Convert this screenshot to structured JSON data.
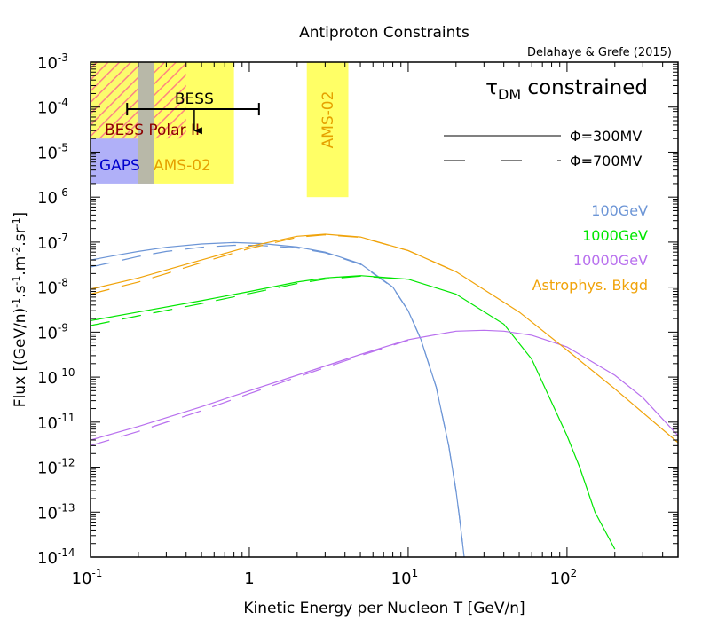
{
  "chart_data": {
    "type": "line",
    "title": "Antiproton Constraints",
    "subtitle": "Delahaye & Grefe (2015)",
    "xlabel": "Kinetic Energy per Nucleon T [GeV/n]",
    "ylabel": "Flux [(GeV/n)^-1.s^-1.m^-2.sr^-1]",
    "xscale": "log",
    "yscale": "log",
    "xlim": [
      0.1,
      500
    ],
    "ylim": [
      1e-14,
      0.001
    ],
    "grid": false,
    "x_ticks": [
      {
        "value": 0.1,
        "base": "10",
        "exp": "-1"
      },
      {
        "value": 1,
        "base": "1",
        "exp": ""
      },
      {
        "value": 10,
        "base": "10",
        "exp": "1"
      },
      {
        "value": 100,
        "base": "10",
        "exp": "2"
      }
    ],
    "y_ticks": [
      {
        "value": 0.001,
        "base": "10",
        "exp": "-3"
      },
      {
        "value": 0.0001,
        "base": "10",
        "exp": "-4"
      },
      {
        "value": 1e-05,
        "base": "10",
        "exp": "-5"
      },
      {
        "value": 1e-06,
        "base": "10",
        "exp": "-6"
      },
      {
        "value": 1e-07,
        "base": "10",
        "exp": "-7"
      },
      {
        "value": 1e-08,
        "base": "10",
        "exp": "-8"
      },
      {
        "value": 1e-09,
        "base": "10",
        "exp": "-9"
      },
      {
        "value": 1e-10,
        "base": "10",
        "exp": "-10"
      },
      {
        "value": 1e-11,
        "base": "10",
        "exp": "-11"
      },
      {
        "value": 1e-12,
        "base": "10",
        "exp": "-12"
      },
      {
        "value": 1e-13,
        "base": "10",
        "exp": "-13"
      },
      {
        "value": 1e-14,
        "base": "10",
        "exp": "-14"
      }
    ],
    "annotation": "τDM constrained",
    "phi_legend": [
      {
        "label": "Φ=300MV",
        "style": "solid"
      },
      {
        "label": "Φ=700MV",
        "style": "dashed"
      }
    ],
    "regions": [
      {
        "label": "BESS Polar II",
        "x": [
          0.1,
          0.4
        ],
        "y": [
          2e-05,
          0.001
        ],
        "fill": "#ff8080",
        "style": "hatch",
        "label_color": "#8b0000"
      },
      {
        "label": "GAPS",
        "x": [
          0.1,
          0.25
        ],
        "y": [
          2e-06,
          0.001
        ],
        "fill": "#b0b0f8",
        "style": "solid",
        "label_color": "#0000cc"
      },
      {
        "label": "AMS-02",
        "x": [
          0.2,
          0.8
        ],
        "y": [
          2e-06,
          0.001
        ],
        "fill": "#ffff66",
        "style": "solid",
        "label_color": "#e6a100"
      },
      {
        "label": "AMS-02",
        "x": [
          2.3,
          4.2
        ],
        "y": [
          1e-06,
          0.001
        ],
        "fill": "#ffff66",
        "style": "solid",
        "label_color": "#e6a100"
      }
    ],
    "bess_limit": {
      "label": "BESS",
      "x": [
        0.17,
        1.15
      ],
      "y": 9e-05,
      "arrow_x": 0.45,
      "arrow_to_y": 3e-05
    },
    "series": [
      {
        "name": "100GeV",
        "color": "#6c95d6",
        "style": "solid",
        "x": [
          0.1,
          0.15,
          0.2,
          0.3,
          0.5,
          0.8,
          1.2,
          2,
          3,
          5,
          8,
          10,
          12,
          15,
          18,
          20,
          21,
          22,
          22.5
        ],
        "y": [
          4e-08,
          5.2e-08,
          6.2e-08,
          7.7e-08,
          9.1e-08,
          9.8e-08,
          9.3e-08,
          7.8e-08,
          6e-08,
          3.3e-08,
          1e-08,
          3e-09,
          7e-10,
          6e-11,
          3e-12,
          3e-13,
          8e-14,
          2e-14,
          1e-14
        ]
      },
      {
        "name": "100GeV",
        "color": "#6c95d6",
        "style": "dashed",
        "x": [
          0.1,
          0.15,
          0.2,
          0.3,
          0.5,
          0.8,
          1.2,
          2,
          3,
          5,
          8,
          10,
          12,
          15,
          18,
          20,
          21,
          22
        ],
        "y": [
          2.8e-08,
          3.8e-08,
          4.8e-08,
          6.2e-08,
          7.7e-08,
          8.5e-08,
          8.4e-08,
          7.4e-08,
          5.8e-08,
          3.2e-08,
          9.8e-09,
          3e-09,
          7e-10,
          6e-11,
          3e-12,
          3e-13,
          8e-14,
          2e-14
        ]
      },
      {
        "name": "1000GeV",
        "color": "#00e600",
        "style": "solid",
        "x": [
          0.1,
          0.2,
          0.5,
          1,
          2,
          3,
          5,
          10,
          20,
          40,
          60,
          100,
          120,
          150,
          200
        ],
        "y": [
          1.8e-09,
          2.8e-09,
          5e-09,
          8e-09,
          1.3e-08,
          1.6e-08,
          1.8e-08,
          1.5e-08,
          7e-09,
          1.5e-09,
          2.5e-10,
          5e-12,
          1e-12,
          1e-13,
          1.5e-14
        ]
      },
      {
        "name": "1000GeV",
        "color": "#00e600",
        "style": "dashed",
        "x": [
          0.1,
          0.2,
          0.5,
          1,
          2,
          3,
          5,
          10
        ],
        "y": [
          1.4e-09,
          2.3e-09,
          4.3e-09,
          7.2e-09,
          1.2e-08,
          1.5e-08,
          1.75e-08,
          1.5e-08
        ]
      },
      {
        "name": "10000GeV",
        "color": "#b870ee",
        "style": "solid",
        "x": [
          0.1,
          0.2,
          0.5,
          1,
          2,
          5,
          10,
          20,
          30,
          40,
          60,
          100,
          200,
          300,
          500
        ],
        "y": [
          4e-12,
          8e-12,
          2.2e-11,
          5e-11,
          1.1e-10,
          3.2e-10,
          6.8e-10,
          1.05e-09,
          1.1e-09,
          1.05e-09,
          8.5e-10,
          4.7e-10,
          1.1e-10,
          3.5e-11,
          5e-12
        ]
      },
      {
        "name": "10000GeV",
        "color": "#b870ee",
        "style": "dashed",
        "x": [
          0.1,
          0.2,
          0.5,
          1,
          2,
          5,
          10
        ],
        "y": [
          3e-12,
          6.2e-12,
          1.8e-11,
          4.3e-11,
          1e-10,
          3e-10,
          6.6e-10
        ]
      },
      {
        "name": "Astrophys. Bkgd",
        "color": "#f0a30a",
        "style": "solid",
        "x": [
          0.1,
          0.2,
          0.3,
          0.5,
          1,
          2,
          3,
          5,
          10,
          20,
          50,
          100,
          200,
          500
        ],
        "y": [
          9e-09,
          1.6e-08,
          2.4e-08,
          4e-08,
          8e-08,
          1.35e-07,
          1.5e-07,
          1.3e-07,
          6.5e-08,
          2.2e-08,
          2.8e-09,
          4e-10,
          5.5e-11,
          3.5e-12
        ]
      },
      {
        "name": "Astrophys. Bkgd",
        "color": "#f0a30a",
        "style": "dashed",
        "x": [
          0.1,
          0.2,
          0.3,
          0.5,
          1,
          2,
          3,
          5,
          10,
          20
        ],
        "y": [
          7e-09,
          1.3e-08,
          2e-08,
          3.5e-08,
          7.2e-08,
          1.28e-07,
          1.45e-07,
          1.28e-07,
          6.5e-08,
          2.2e-08
        ]
      }
    ],
    "legend": [
      {
        "label": "100GeV",
        "color": "#6c95d6"
      },
      {
        "label": "1000GeV",
        "color": "#00e600"
      },
      {
        "label": "10000GeV",
        "color": "#b870ee"
      },
      {
        "label": "Astrophys. Bkgd",
        "color": "#f0a30a"
      }
    ],
    "legend_position": "right"
  }
}
